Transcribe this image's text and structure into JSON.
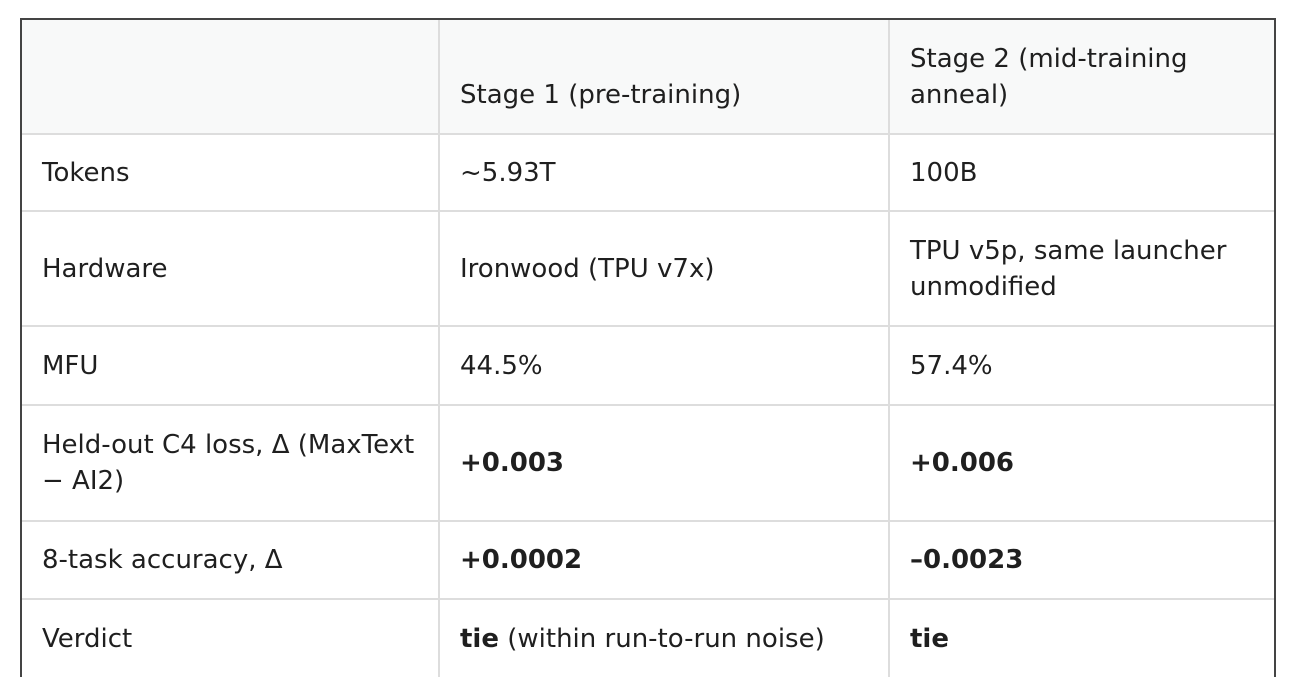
{
  "table": {
    "columns": [
      "Stage 1 (pre-training)",
      "Stage 2 (mid-training anneal)"
    ],
    "rows": [
      {
        "label": "Tokens",
        "cells": [
          "~5.93T",
          "100B"
        ]
      },
      {
        "label": "Hardware",
        "cells": [
          "Ironwood (TPU v7x)",
          "TPU v5p, same launcher unmodified"
        ]
      },
      {
        "label": "MFU",
        "cells": [
          "44.5%",
          "57.4%"
        ]
      },
      {
        "label": "Held-out C4 loss, Δ (MaxText − AI2)",
        "cells": [
          "+0.003",
          "+0.006"
        ]
      },
      {
        "label": "8-task accuracy, Δ",
        "cells": [
          "+0.0002",
          "–0.0023"
        ]
      },
      {
        "label": "Verdict",
        "cells": [
          "tie",
          "tie"
        ],
        "note": "(within run-to-run noise)"
      }
    ]
  }
}
